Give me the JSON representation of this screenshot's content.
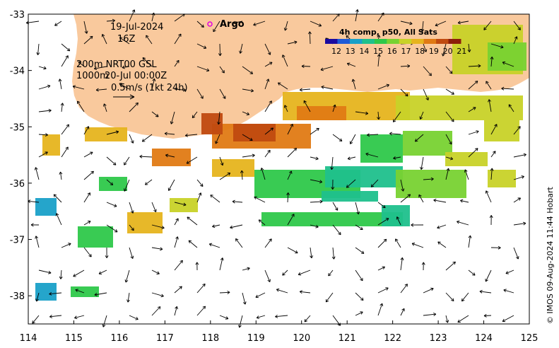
{
  "map": {
    "date": "19-Jul-2024",
    "hour": "16Z",
    "platform_label": "Argo",
    "legend_line1": "200m  NRT00 GSL",
    "legend_depth": "1000m",
    "legend_date2": "20-Jul 00:00Z",
    "scale_label": "0.5m/s (1kt 24h)",
    "credit": "© IMOS 09-Aug-2024 11:44 Hobart",
    "lon_range": [
      114,
      125
    ],
    "lat_range": [
      -38.5,
      -33
    ],
    "lon_ticks": [
      "114",
      "115",
      "116",
      "117",
      "118",
      "119",
      "120",
      "121",
      "122",
      "123",
      "124",
      "125"
    ],
    "lat_ticks": [
      "-33",
      "-34",
      "-35",
      "-36",
      "-37",
      "-38"
    ],
    "land_color": "#f9c99d",
    "argo_marker_color": "#e000e0"
  },
  "colorbar": {
    "title": "4h comp, p50, All Sats",
    "ticks": [
      "12",
      "13",
      "14",
      "15",
      "16",
      "17",
      "18",
      "19",
      "20",
      "21"
    ],
    "colors": [
      "#1a0aa0",
      "#1e5ad8",
      "#19a0c8",
      "#1fc08c",
      "#2ec84a",
      "#78d232",
      "#c8d228",
      "#e6b41e",
      "#e07a14",
      "#c04a10",
      "#8c1e0a"
    ]
  }
}
